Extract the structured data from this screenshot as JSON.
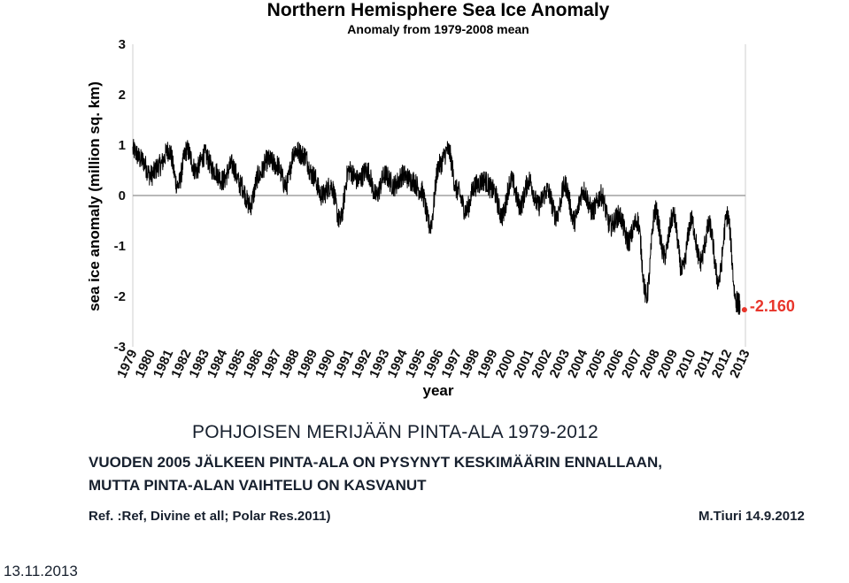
{
  "chart_data": {
    "type": "line",
    "title": "Northern Hemisphere Sea Ice Anomaly",
    "subtitle": "Anomaly from 1979-2008 mean",
    "xlabel": "year",
    "ylabel": "sea ice anomaly (million sq. km)",
    "xlim": [
      1979,
      2013
    ],
    "ylim": [
      -3,
      3
    ],
    "y_ticks": [
      "3",
      "2",
      "1",
      "0",
      "-1",
      "-2",
      "-3"
    ],
    "x_ticks": [
      "1979",
      "1980",
      "1981",
      "1982",
      "1983",
      "1984",
      "1985",
      "1986",
      "1987",
      "1988",
      "1989",
      "1990",
      "1991",
      "1992",
      "1993",
      "1994",
      "1995",
      "1996",
      "1997",
      "1998",
      "1999",
      "2000",
      "2001",
      "2002",
      "2003",
      "2004",
      "2005",
      "2006",
      "2007",
      "2008",
      "2009",
      "2010",
      "2011",
      "2012",
      "2013"
    ],
    "grid": false,
    "series": [
      {
        "x": [
          1979.0,
          1979.5,
          1980.0,
          1980.5,
          1981.0,
          1981.5,
          1982.0,
          1982.5,
          1983.0,
          1983.5,
          1984.0,
          1984.5,
          1985.0,
          1985.5,
          1986.0,
          1986.5,
          1987.0,
          1987.5,
          1988.0,
          1988.5,
          1989.0,
          1989.5,
          1990.0,
          1990.5,
          1991.0,
          1991.5,
          1992.0,
          1992.5,
          1993.0,
          1993.5,
          1994.0,
          1994.5,
          1995.0,
          1995.5,
          1996.0,
          1996.5,
          1997.0,
          1997.5,
          1998.0,
          1998.5,
          1999.0,
          1999.5,
          2000.0,
          2000.5,
          2001.0,
          2001.5,
          2002.0,
          2002.5,
          2003.0,
          2003.5,
          2004.0,
          2004.5,
          2005.0,
          2005.5,
          2006.0,
          2006.5,
          2007.0,
          2007.5,
          2008.0,
          2008.5,
          2009.0,
          2009.5,
          2010.0,
          2010.5,
          2011.0,
          2011.5,
          2012.0,
          2012.5,
          2012.7
        ],
        "values": [
          0.9,
          0.7,
          0.4,
          0.6,
          0.9,
          0.2,
          0.9,
          0.5,
          0.8,
          0.5,
          0.3,
          0.6,
          0.2,
          -0.2,
          0.4,
          0.7,
          0.6,
          0.2,
          0.9,
          0.8,
          0.4,
          0.0,
          0.2,
          -0.5,
          0.5,
          0.3,
          0.5,
          0.0,
          0.4,
          0.2,
          0.4,
          0.3,
          0.1,
          -0.6,
          0.6,
          0.9,
          0.1,
          -0.3,
          0.2,
          0.3,
          0.1,
          -0.4,
          0.3,
          -0.2,
          0.3,
          -0.2,
          0.1,
          -0.4,
          0.2,
          -0.5,
          0.1,
          -0.3,
          0.0,
          -0.6,
          -0.4,
          -0.9,
          -0.5,
          -2.0,
          -0.3,
          -1.2,
          -0.4,
          -1.5,
          -0.5,
          -1.3,
          -0.6,
          -1.7,
          -0.4,
          -2.1,
          -2.16
        ]
      }
    ],
    "annotation": "-2.160",
    "colors": {
      "line": "#000000",
      "annotation": "#e8352b",
      "zero_line": "#a0a0a0",
      "text": "#17202e"
    }
  },
  "slide": {
    "headline": "POHJOISEN MERIJÄÄN PINTA-ALA 1979-2012",
    "body_line1": "VUODEN 2005 JÄLKEEN PINTA-ALA ON PYSYNYT KESKIMÄÄRIN ENNALLAAN,",
    "body_line2": "MUTTA PINTA-ALAN VAIHTELU ON KASVANUT",
    "ref_left": "Ref. :Ref, Divine et all; Polar Res.2011)",
    "ref_right": "M.Tiuri 14.9.2012",
    "date": "13.11.2013"
  }
}
